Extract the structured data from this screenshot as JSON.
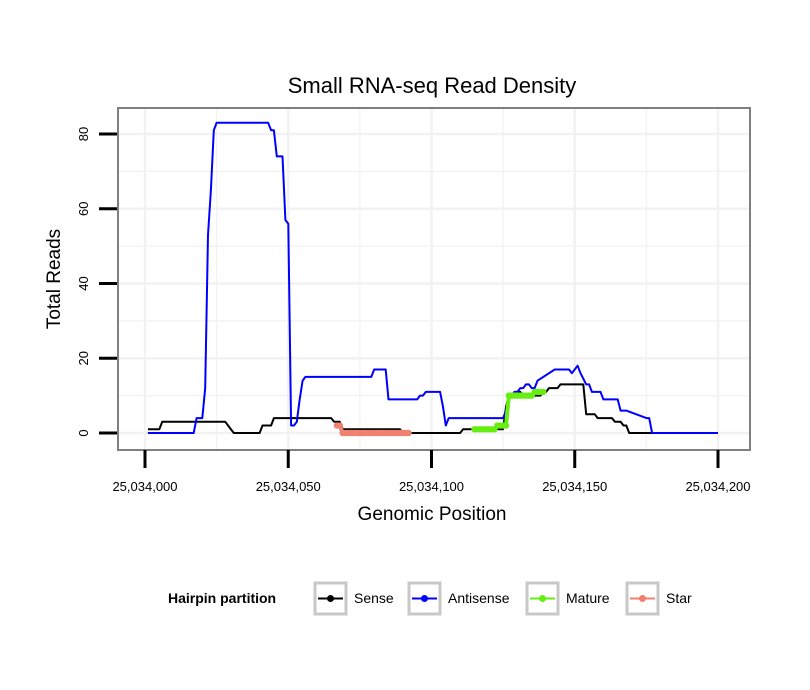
{
  "chart_data": {
    "type": "line",
    "title": "Small RNA-seq Read Density",
    "xlabel": "Genomic Position",
    "ylabel": "Total Reads",
    "xlim": [
      25034000,
      25034200
    ],
    "ylim": [
      -3,
      87
    ],
    "x_ticks": [
      25034000,
      25034050,
      25034100,
      25034150,
      25034200
    ],
    "x_tick_labels": [
      "25,034,000",
      "25,034,050",
      "25,034,100",
      "25,034,150",
      "25,034,200"
    ],
    "y_ticks": [
      0,
      20,
      40,
      60,
      80
    ],
    "y_tick_labels": [
      "0",
      "20",
      "40",
      "60",
      "80"
    ],
    "grid": true,
    "legend": {
      "title": "Hairpin partition",
      "position": "bottom",
      "entries": [
        "Sense",
        "Antisense",
        "Mature",
        "Star"
      ]
    },
    "series": [
      {
        "name": "Sense",
        "color": "#000000",
        "marker": false,
        "x": [
          25034001,
          25034005,
          25034006,
          25034022,
          25034028,
          25034029,
          25034030,
          25034031,
          25034040,
          25034041,
          25034044,
          25034045,
          25034065,
          25034066,
          25034068,
          25034069,
          25034089,
          25034090,
          25034110,
          25034111,
          25034125,
          25034126,
          25034127,
          25034128,
          25034129,
          25034131,
          25034132,
          25034138,
          25034139,
          25034140,
          25034141,
          25034142,
          25034144,
          25034145,
          25034153,
          25034154,
          25034157,
          25034158,
          25034163,
          25034164,
          25034166,
          25034167,
          25034168,
          25034169,
          25034175,
          25034176,
          25034200
        ],
        "y": [
          1,
          1,
          3,
          3,
          3,
          2,
          1,
          0,
          0,
          2,
          2,
          4,
          4,
          3,
          3,
          1,
          1,
          0,
          0,
          1,
          1,
          7,
          10,
          10,
          11,
          11,
          10,
          10,
          11,
          11,
          12,
          12,
          12,
          13,
          13,
          5,
          5,
          4,
          4,
          3,
          3,
          2,
          2,
          0,
          0,
          0,
          0
        ]
      },
      {
        "name": "Antisense",
        "color": "#0000ff",
        "marker": false,
        "x": [
          25034001,
          25034017,
          25034018,
          25034020,
          25034021,
          25034022,
          25034023,
          25034024,
          25034025,
          25034043,
          25034044,
          25034045,
          25034046,
          25034047,
          25034048,
          25034049,
          25034050,
          25034051,
          25034052,
          25034053,
          25034054,
          25034055,
          25034056,
          25034057,
          25034058,
          25034059,
          25034060,
          25034070,
          25034079,
          25034080,
          25034084,
          25034085,
          25034095,
          25034096,
          25034097,
          25034098,
          25034102,
          25034103,
          25034104,
          25034105,
          25034106,
          25034124,
          25034125,
          25034126,
          25034127,
          25034128,
          25034129,
          25034130,
          25034131,
          25034132,
          25034133,
          25034134,
          25034135,
          25034136,
          25034137,
          25034143,
          25034147,
          25034148,
          25034149,
          25034151,
          25034152,
          25034154,
          25034155,
          25034156,
          25034159,
          25034160,
          25034161,
          25034165,
          25034166,
          25034167,
          25034168,
          25034175,
          25034176,
          25034177,
          25034200
        ],
        "y": [
          0,
          0,
          4,
          4,
          12,
          53,
          65,
          81,
          83,
          83,
          81,
          81,
          74,
          74,
          74,
          57,
          56,
          2,
          2,
          3,
          9,
          14,
          15,
          15,
          15,
          15,
          15,
          15,
          15,
          17,
          17,
          9,
          9,
          10,
          10,
          11,
          11,
          11,
          7,
          2,
          4,
          4,
          4,
          6,
          9,
          10,
          11,
          11,
          12,
          12,
          13,
          13,
          12,
          12,
          14,
          17,
          17,
          17,
          16,
          18,
          16,
          13,
          13,
          11,
          11,
          9,
          9,
          9,
          6,
          6,
          6,
          4,
          4,
          0,
          0
        ]
      },
      {
        "name": "Mature",
        "color": "#66ee11",
        "marker": true,
        "x": [
          25034115,
          25034116,
          25034117,
          25034118,
          25034119,
          25034120,
          25034121,
          25034122,
          25034123,
          25034124,
          25034125,
          25034126,
          25034127,
          25034128,
          25034129,
          25034130,
          25034131,
          25034132,
          25034133,
          25034134,
          25034135,
          25034136,
          25034137,
          25034138,
          25034139
        ],
        "y": [
          1,
          1,
          1,
          1,
          1,
          1,
          1,
          1,
          2,
          2,
          2,
          2,
          10,
          10,
          10,
          10,
          10,
          10,
          10,
          10,
          10,
          11,
          11,
          11,
          11
        ]
      },
      {
        "name": "Star",
        "color": "#f08070",
        "marker": true,
        "x": [
          25034067,
          25034068,
          25034069,
          25034070,
          25034071,
          25034072,
          25034073,
          25034074,
          25034075,
          25034076,
          25034077,
          25034078,
          25034079,
          25034080,
          25034081,
          25034082,
          25034083,
          25034084,
          25034085,
          25034086,
          25034087,
          25034088,
          25034089,
          25034090,
          25034091,
          25034092
        ],
        "y": [
          2,
          2,
          0,
          0,
          0,
          0,
          0,
          0,
          0,
          0,
          0,
          0,
          0,
          0,
          0,
          0,
          0,
          0,
          0,
          0,
          0,
          0,
          0,
          0,
          0,
          0
        ]
      }
    ]
  }
}
